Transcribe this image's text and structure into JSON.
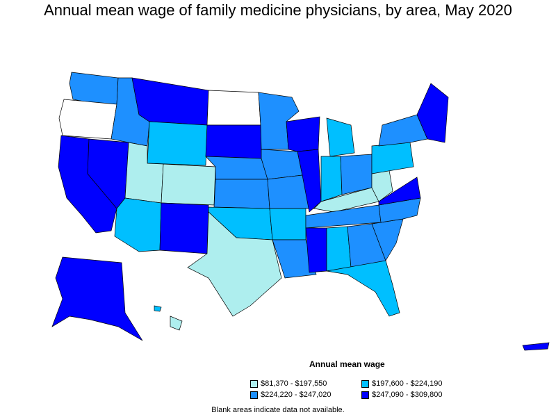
{
  "title": "Annual mean wage of family medicine physicians, by area, May 2020",
  "legend": {
    "title": "Annual mean wage",
    "items": [
      {
        "label": "$81,370 - $197,550",
        "color": "#aeeeee"
      },
      {
        "label": "$197,600 - $224,190",
        "color": "#00bfff"
      },
      {
        "label": "$224,220 - $247,020",
        "color": "#1e90ff"
      },
      {
        "label": "$247,090 - $309,800",
        "color": "#0000ff"
      }
    ]
  },
  "footnote": "Blank areas indicate data not available.",
  "colors": {
    "no_data": "#ffffff",
    "border": "#000000"
  }
}
